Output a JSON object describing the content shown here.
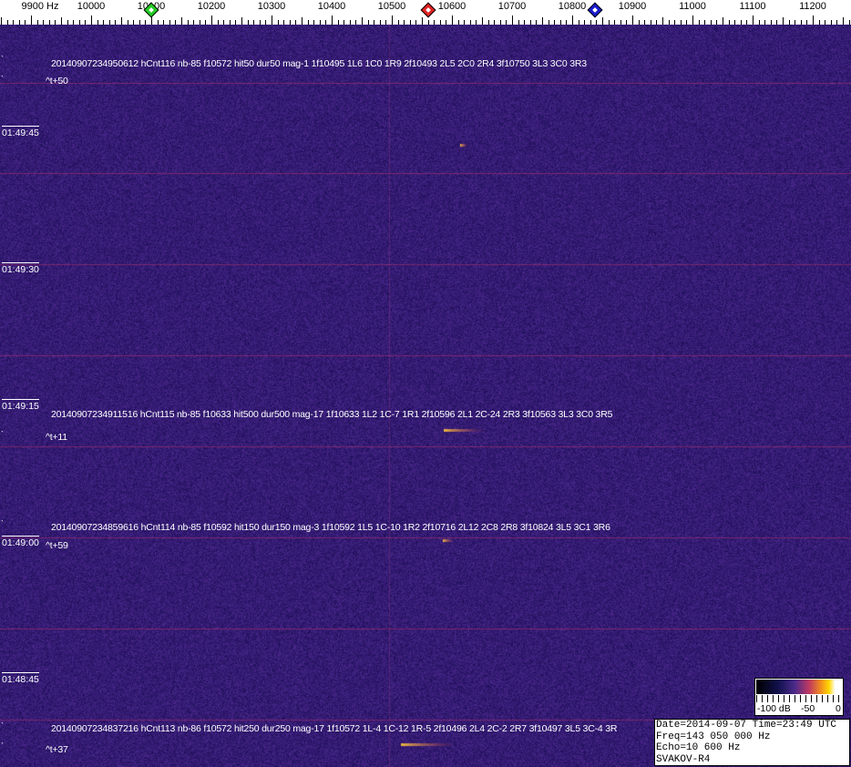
{
  "frequency_scale": {
    "unit": "Hz",
    "labels": [
      "9900",
      "10000",
      "10100",
      "10200",
      "10300",
      "10400",
      "10500",
      "10600",
      "10700",
      "10800",
      "10900",
      "11000",
      "11100",
      "11200"
    ],
    "markers": [
      {
        "name": "green-marker",
        "color": "#22cc22",
        "freq": 10100
      },
      {
        "name": "red-marker",
        "color": "#dd2222",
        "freq": 10560
      },
      {
        "name": "blue-marker",
        "color": "#1a1acc",
        "freq": 10838
      }
    ]
  },
  "time_labels": [
    "01:49:45",
    "01:49:30",
    "01:49:15",
    "01:49:00",
    "01:48:45"
  ],
  "detections": [
    {
      "line": "20140907234950612 hCnt116 nb-85 f10572 hit50 dur50 mag-1 1f10495 1L6 1C0 1R9 2f10493 2L5 2C0 2R4 3f10750 3L3 3C0 3R3",
      "delta": "^t+50"
    },
    {
      "line": "20140907234911516 hCnt115 nb-85 f10633 hit500 dur500 mag-17 1f10633 1L2 1C-7 1R1 2f10596 2L1 2C-24 2R3 3f10563 3L3 3C0 3R5",
      "delta": "^t+11"
    },
    {
      "line": "20140907234859616 hCnt114 nb-85 f10592 hit150 dur150 mag-3 1f10592 1L5 1C-10 1R2 2f10716 2L12 2C8 2R8 3f10824 3L5 3C1 3R6",
      "delta": "^t+59"
    },
    {
      "line": "20140907234837216 hCnt113 nb-86 f10572 hit250 dur250 mag-17 1f10572 1L-4 1C-12 1R-5 2f10496 2L4 2C-2 2R7 3f10497 3L5 3C-4 3R",
      "delta": "^t+37"
    }
  ],
  "colorbar": {
    "labels": [
      "-100 dB",
      "-50",
      "0"
    ]
  },
  "info": {
    "date_time": "Date=2014-09-07 Time=23:49 UTC",
    "freq": "Freq=143 050 000 Hz",
    "echo": "Echo=10 600 Hz",
    "station": "SVAKOV-R4"
  },
  "colors": {
    "background": "#2b1c6e",
    "line": "#a0306a",
    "echo": "#ffb020"
  }
}
